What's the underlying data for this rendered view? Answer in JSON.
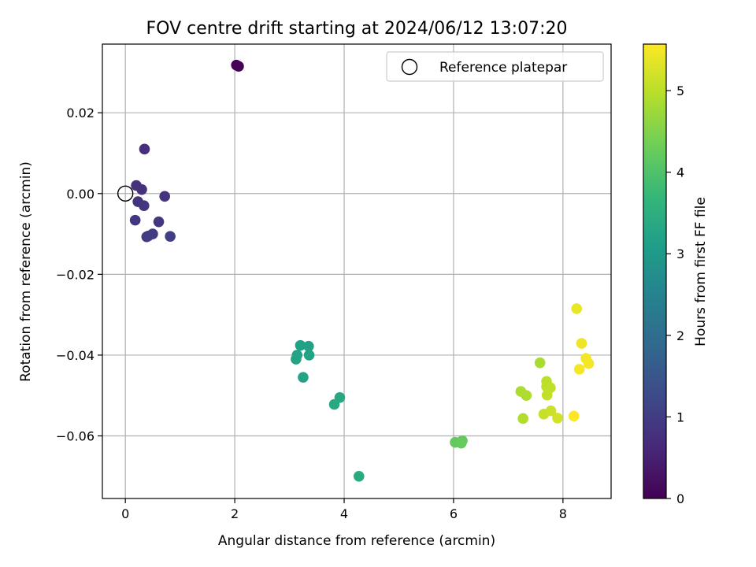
{
  "chart_data": {
    "type": "scatter",
    "title": "FOV centre drift starting at 2024/06/12 13:07:20",
    "xlabel": "Angular distance from reference (arcmin)",
    "ylabel": "Rotation from reference (arcmin)",
    "xlim": [
      -0.42,
      8.88
    ],
    "ylim": [
      -0.0755,
      0.037
    ],
    "xticks": [
      0,
      2,
      4,
      6,
      8
    ],
    "yticks": [
      0.02,
      0.0,
      -0.02,
      -0.04,
      -0.06
    ],
    "xtick_labels": [
      "0",
      "2",
      "4",
      "6",
      "8"
    ],
    "ytick_labels": [
      "0.02",
      "0.00",
      "−0.02",
      "−0.04",
      "−0.06"
    ],
    "grid": true,
    "legend_position": "top-right",
    "legend": [
      {
        "label": "Reference platepar",
        "marker": "open-circle",
        "color": "#000000"
      }
    ],
    "reference_point": {
      "x": 0.0,
      "y": 0.0
    },
    "colorbar": {
      "label": "Hours from first FF file",
      "range": [
        0,
        5.57
      ],
      "ticks": [
        0,
        1,
        2,
        3,
        4,
        5
      ],
      "tick_labels": [
        "0",
        "1",
        "2",
        "3",
        "4",
        "5"
      ],
      "colormap": "viridis",
      "stops": [
        "#440154",
        "#482878",
        "#3e4989",
        "#31688e",
        "#26828e",
        "#1f9e89",
        "#35b779",
        "#6ece58",
        "#b5de2b",
        "#fde725"
      ]
    },
    "points": [
      {
        "x": 2.03,
        "y": 0.0318,
        "t": 0.02
      },
      {
        "x": 2.07,
        "y": 0.0315,
        "t": 0.06
      },
      {
        "x": 0.35,
        "y": 0.011,
        "t": 0.75
      },
      {
        "x": 0.2,
        "y": 0.002,
        "t": 0.78
      },
      {
        "x": 0.3,
        "y": 0.001,
        "t": 0.8
      },
      {
        "x": 0.72,
        "y": -0.0007,
        "t": 0.82
      },
      {
        "x": 0.23,
        "y": -0.002,
        "t": 0.85
      },
      {
        "x": 0.34,
        "y": -0.003,
        "t": 0.88
      },
      {
        "x": 0.18,
        "y": -0.0066,
        "t": 0.9
      },
      {
        "x": 0.61,
        "y": -0.007,
        "t": 0.92
      },
      {
        "x": 0.5,
        "y": -0.01,
        "t": 0.95
      },
      {
        "x": 0.39,
        "y": -0.0107,
        "t": 0.98
      },
      {
        "x": 0.42,
        "y": -0.0105,
        "t": 1.0
      },
      {
        "x": 0.82,
        "y": -0.0106,
        "t": 1.03
      },
      {
        "x": 3.2,
        "y": -0.0376,
        "t": 3.15
      },
      {
        "x": 3.35,
        "y": -0.0378,
        "t": 3.17
      },
      {
        "x": 3.14,
        "y": -0.04,
        "t": 3.19
      },
      {
        "x": 3.36,
        "y": -0.04,
        "t": 3.21
      },
      {
        "x": 3.12,
        "y": -0.041,
        "t": 3.23
      },
      {
        "x": 3.25,
        "y": -0.0455,
        "t": 3.25
      },
      {
        "x": 3.92,
        "y": -0.0505,
        "t": 3.35
      },
      {
        "x": 3.82,
        "y": -0.0522,
        "t": 3.37
      },
      {
        "x": 4.27,
        "y": -0.07,
        "t": 3.4
      },
      {
        "x": 6.03,
        "y": -0.0616,
        "t": 4.2
      },
      {
        "x": 6.16,
        "y": -0.0612,
        "t": 4.22
      },
      {
        "x": 6.14,
        "y": -0.0618,
        "t": 4.24
      },
      {
        "x": 7.58,
        "y": -0.0419,
        "t": 4.85
      },
      {
        "x": 7.23,
        "y": -0.049,
        "t": 4.88
      },
      {
        "x": 7.33,
        "y": -0.05,
        "t": 4.9
      },
      {
        "x": 7.27,
        "y": -0.0557,
        "t": 4.92
      },
      {
        "x": 7.7,
        "y": -0.0465,
        "t": 5.0
      },
      {
        "x": 7.7,
        "y": -0.0478,
        "t": 5.02
      },
      {
        "x": 7.77,
        "y": -0.0481,
        "t": 5.04
      },
      {
        "x": 7.71,
        "y": -0.0499,
        "t": 5.06
      },
      {
        "x": 7.65,
        "y": -0.0546,
        "t": 5.1
      },
      {
        "x": 7.78,
        "y": -0.0538,
        "t": 5.14
      },
      {
        "x": 7.9,
        "y": -0.0556,
        "t": 5.2
      },
      {
        "x": 8.25,
        "y": -0.0285,
        "t": 5.4
      },
      {
        "x": 8.34,
        "y": -0.0371,
        "t": 5.45
      },
      {
        "x": 8.42,
        "y": -0.0408,
        "t": 5.48
      },
      {
        "x": 8.47,
        "y": -0.0421,
        "t": 5.5
      },
      {
        "x": 8.3,
        "y": -0.0435,
        "t": 5.52
      },
      {
        "x": 8.2,
        "y": -0.0551,
        "t": 5.55
      }
    ]
  }
}
